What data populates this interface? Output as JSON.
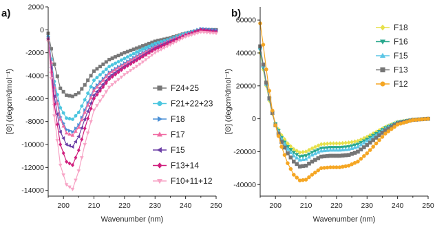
{
  "chart_data": [
    {
      "panel_label": "a)",
      "type": "line",
      "xlabel": "Wavenumber (nm)",
      "ylabel": "[Θ] (degcm²dmol⁻¹)",
      "xlim": [
        195,
        250
      ],
      "ylim": [
        -14500,
        2000
      ],
      "xticks": [
        200,
        210,
        220,
        230,
        240,
        250
      ],
      "yticks": [
        2000,
        0,
        -2000,
        -4000,
        -6000,
        -8000,
        -10000,
        -12000,
        -14000
      ],
      "grid": false,
      "legend": "right",
      "x": [
        195,
        197,
        199,
        201,
        203,
        205,
        207,
        210,
        215,
        220,
        225,
        230,
        235,
        240,
        245,
        250
      ],
      "series": [
        {
          "name": "F24+25",
          "color": "#777777",
          "marker": "square",
          "values": [
            -300,
            -3000,
            -5100,
            -5700,
            -5800,
            -5500,
            -4800,
            -3600,
            -2600,
            -2000,
            -1500,
            -1000,
            -700,
            -300,
            0,
            0
          ]
        },
        {
          "name": "F21+22+23",
          "color": "#4cc6df",
          "marker": "circle",
          "values": [
            -600,
            -4500,
            -6800,
            -7700,
            -7800,
            -7200,
            -6100,
            -4400,
            -3200,
            -2500,
            -1800,
            -1200,
            -800,
            -300,
            0,
            -100
          ]
        },
        {
          "name": "F18",
          "color": "#4a8fd6",
          "marker": "triangle-right",
          "values": [
            -600,
            -4800,
            -7600,
            -8700,
            -8900,
            -8300,
            -7000,
            -5100,
            -3700,
            -2900,
            -2100,
            -1400,
            -900,
            -400,
            100,
            0
          ]
        },
        {
          "name": "F17",
          "color": "#f06aa2",
          "marker": "triangle-up",
          "values": [
            -700,
            -5000,
            -7800,
            -9000,
            -9200,
            -8500,
            -7200,
            -5300,
            -3800,
            -3000,
            -2200,
            -1500,
            -900,
            -400,
            0,
            -100
          ]
        },
        {
          "name": "F15",
          "color": "#6c3fa6",
          "marker": "triangle-left",
          "values": [
            -800,
            -5800,
            -8900,
            -10000,
            -10200,
            -9300,
            -7800,
            -5700,
            -4100,
            -3200,
            -2400,
            -1600,
            -1000,
            -500,
            0,
            -100
          ]
        },
        {
          "name": "F13+14",
          "color": "#d01f7e",
          "marker": "diamond",
          "values": [
            -900,
            -6500,
            -10000,
            -11500,
            -11800,
            -10500,
            -8600,
            -6000,
            -4300,
            -3300,
            -2500,
            -1700,
            -1100,
            -500,
            0,
            -200
          ]
        },
        {
          "name": "F10+11+12",
          "color": "#f7a3c5",
          "marker": "triangle-down",
          "values": [
            -1000,
            -7500,
            -11800,
            -13500,
            -13900,
            -12300,
            -10000,
            -7000,
            -5000,
            -3900,
            -3000,
            -2000,
            -1300,
            -600,
            -200,
            -300
          ]
        }
      ]
    },
    {
      "panel_label": "b)",
      "type": "line",
      "xlabel": "Wavenumber (nm)",
      "ylabel": "[Θ] (degcm²dmol⁻¹)",
      "xlim": [
        195,
        250
      ],
      "ylim": [
        -47000,
        68000
      ],
      "xticks": [
        200,
        210,
        220,
        230,
        240,
        250
      ],
      "yticks": [
        60000,
        40000,
        20000,
        0,
        -20000,
        -40000
      ],
      "grid": false,
      "legend": "top-right",
      "x": [
        195,
        196,
        197,
        198,
        199,
        200,
        202,
        204,
        206,
        208,
        210,
        212,
        215,
        218,
        221,
        224,
        227,
        230,
        233,
        236,
        240,
        245,
        250
      ],
      "series": [
        {
          "name": "F18",
          "color": "#e6e04a",
          "marker": "diamond",
          "values": [
            40000,
            30000,
            20000,
            11000,
            3000,
            -3000,
            -10000,
            -15000,
            -18500,
            -20500,
            -20000,
            -18000,
            -15500,
            -15000,
            -15000,
            -14500,
            -13500,
            -11000,
            -8000,
            -5000,
            -2000,
            -500,
            0
          ]
        },
        {
          "name": "F16",
          "color": "#2aa88e",
          "marker": "triangle-down",
          "values": [
            42000,
            31000,
            21000,
            12000,
            3500,
            -3000,
            -11500,
            -17000,
            -20500,
            -23000,
            -22500,
            -20500,
            -18000,
            -17500,
            -17500,
            -17000,
            -15500,
            -12500,
            -9000,
            -5500,
            -2200,
            -500,
            0
          ]
        },
        {
          "name": "F15",
          "color": "#5bc6e6",
          "marker": "triangle-up",
          "values": [
            43000,
            32000,
            21000,
            12000,
            3500,
            -3500,
            -12500,
            -18500,
            -22500,
            -25000,
            -24500,
            -22000,
            -19500,
            -19000,
            -19000,
            -18500,
            -17000,
            -13500,
            -10000,
            -6000,
            -2400,
            -600,
            0
          ]
        },
        {
          "name": "F13",
          "color": "#757575",
          "marker": "square",
          "values": [
            44000,
            33000,
            22000,
            12500,
            3500,
            -4000,
            -14000,
            -21000,
            -26000,
            -29000,
            -28500,
            -26000,
            -23000,
            -22500,
            -22500,
            -22000,
            -20000,
            -16000,
            -11500,
            -7000,
            -2800,
            -700,
            0
          ]
        },
        {
          "name": "F12",
          "color": "#f5a623",
          "marker": "circle",
          "values": [
            58000,
            45000,
            30000,
            17000,
            5000,
            -4000,
            -17000,
            -27000,
            -34000,
            -37500,
            -37000,
            -34000,
            -30000,
            -29500,
            -29500,
            -28500,
            -26000,
            -21000,
            -15000,
            -9000,
            -3500,
            -800,
            0
          ]
        }
      ]
    }
  ]
}
